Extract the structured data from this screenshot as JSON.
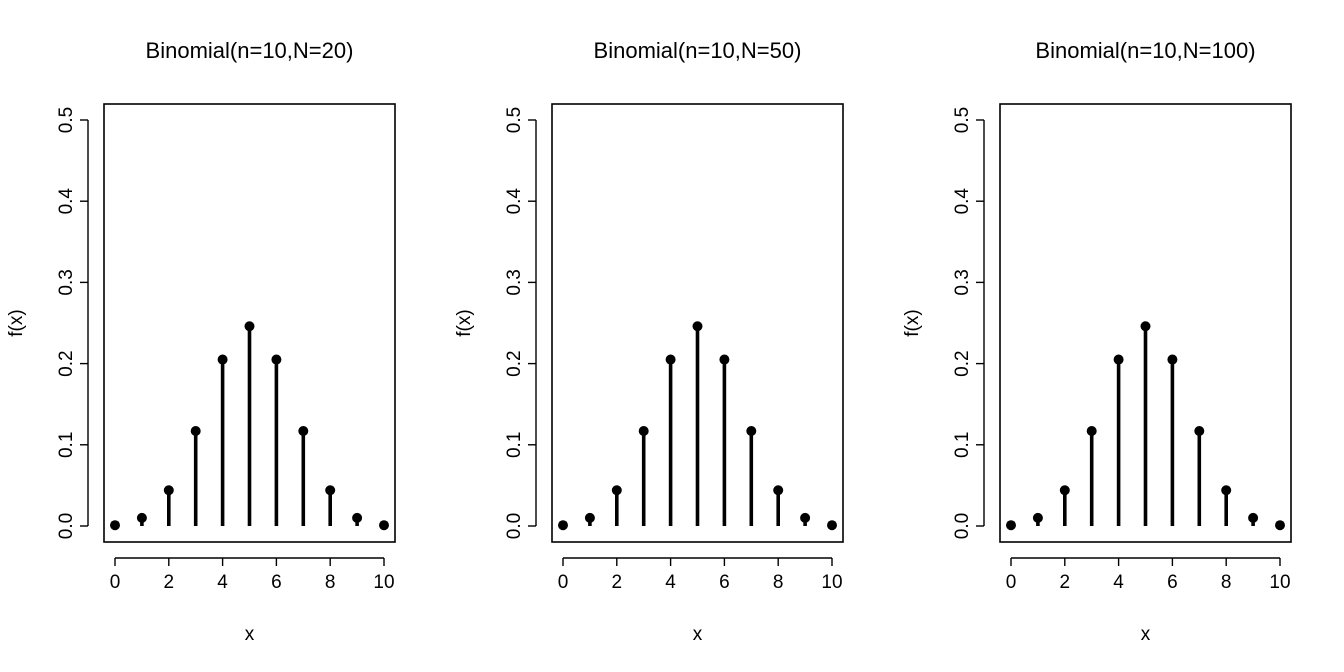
{
  "chart_data": [
    {
      "type": "stem",
      "title": "Binomial(n=10,N=20)",
      "xlabel": "x",
      "ylabel": "f(x)",
      "xlim": [
        0,
        10
      ],
      "ylim": [
        0,
        0.5
      ],
      "xticks": [
        "0",
        "2",
        "4",
        "6",
        "8",
        "10"
      ],
      "yticks": [
        "0.0",
        "0.1",
        "0.2",
        "0.3",
        "0.4",
        "0.5"
      ],
      "x": [
        0,
        1,
        2,
        3,
        4,
        5,
        6,
        7,
        8,
        9,
        10
      ],
      "values": [
        0.001,
        0.01,
        0.044,
        0.117,
        0.205,
        0.246,
        0.205,
        0.117,
        0.044,
        0.01,
        0.001
      ]
    },
    {
      "type": "stem",
      "title": "Binomial(n=10,N=50)",
      "xlabel": "x",
      "ylabel": "f(x)",
      "xlim": [
        0,
        10
      ],
      "ylim": [
        0,
        0.5
      ],
      "xticks": [
        "0",
        "2",
        "4",
        "6",
        "8",
        "10"
      ],
      "yticks": [
        "0.0",
        "0.1",
        "0.2",
        "0.3",
        "0.4",
        "0.5"
      ],
      "x": [
        0,
        1,
        2,
        3,
        4,
        5,
        6,
        7,
        8,
        9,
        10
      ],
      "values": [
        0.001,
        0.01,
        0.044,
        0.117,
        0.205,
        0.246,
        0.205,
        0.117,
        0.044,
        0.01,
        0.001
      ]
    },
    {
      "type": "stem",
      "title": "Binomial(n=10,N=100)",
      "xlabel": "x",
      "ylabel": "f(x)",
      "xlim": [
        0,
        10
      ],
      "ylim": [
        0,
        0.5
      ],
      "xticks": [
        "0",
        "2",
        "4",
        "6",
        "8",
        "10"
      ],
      "yticks": [
        "0.0",
        "0.1",
        "0.2",
        "0.3",
        "0.4",
        "0.5"
      ],
      "x": [
        0,
        1,
        2,
        3,
        4,
        5,
        6,
        7,
        8,
        9,
        10
      ],
      "values": [
        0.001,
        0.01,
        0.044,
        0.117,
        0.205,
        0.246,
        0.205,
        0.117,
        0.044,
        0.01,
        0.001
      ]
    }
  ]
}
